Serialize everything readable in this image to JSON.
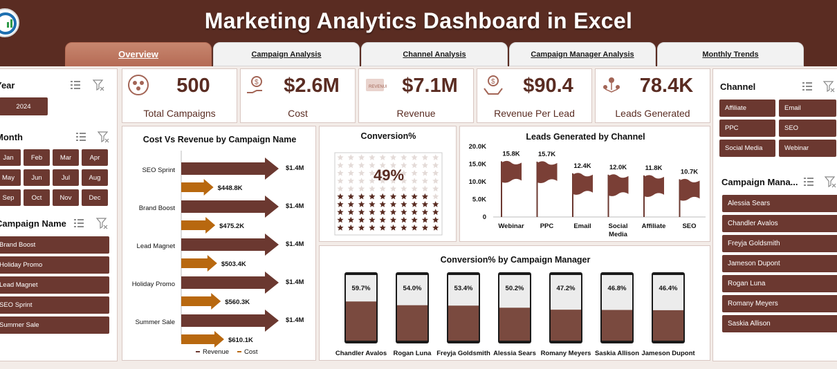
{
  "header": {
    "title": "Marketing Analytics Dashboard in Excel",
    "tabs": [
      {
        "label": "Overview",
        "active": true
      },
      {
        "label": "Campaign Analysis",
        "active": false
      },
      {
        "label": "Channel Analysis",
        "active": false
      },
      {
        "label": "Campaign Manager Analysis",
        "active": false
      },
      {
        "label": "Monthly Trends",
        "active": false
      }
    ]
  },
  "colors": {
    "brand": "#5a2c22",
    "revenue": "#6b3830",
    "cost": "#b8680f",
    "accent_tab": "#b56b55"
  },
  "left_slicers": {
    "year": {
      "title": "Year",
      "items": [
        "2024"
      ]
    },
    "month": {
      "title": "Month",
      "items": [
        "Jan",
        "Feb",
        "Mar",
        "Apr",
        "May",
        "Jun",
        "Jul",
        "Aug",
        "Sep",
        "Oct",
        "Nov",
        "Dec"
      ]
    },
    "campaign_name": {
      "title": "Campaign Name",
      "items": [
        "Brand Boost",
        "Holiday Promo",
        "Lead Magnet",
        "SEO Sprint",
        "Summer Sale"
      ]
    }
  },
  "right_slicers": {
    "channel": {
      "title": "Channel",
      "items": [
        "Affiliate",
        "Email",
        "PPC",
        "SEO",
        "Social Media",
        "Webinar"
      ]
    },
    "manager": {
      "title": "Campaign Mana...",
      "items": [
        "Alessia Sears",
        "Chandler Avalos",
        "Freyja Goldsmith",
        "Jameson Dupont",
        "Rogan Luna",
        "Romany Meyers",
        "Saskia Allison"
      ]
    }
  },
  "kpis": [
    {
      "value": "500",
      "label": "Total Campaigns",
      "icon": "campaigns-icon"
    },
    {
      "value": "$2.6M",
      "label": "Cost",
      "icon": "cost-icon"
    },
    {
      "value": "$7.1M",
      "label": "Revenue",
      "icon": "revenue-icon"
    },
    {
      "value": "$90.4",
      "label": "Revenue Per Lead",
      "icon": "revenue-per-lead-icon"
    },
    {
      "value": "78.4K",
      "label": "Leads Generated",
      "icon": "leads-icon"
    }
  ],
  "chart_data": [
    {
      "type": "bar",
      "title": "Cost Vs Revenue by Campaign Name",
      "categories": [
        "SEO Sprint",
        "Brand Boost",
        "Lead Magnet",
        "Holiday Promo",
        "Summer Sale"
      ],
      "series": [
        {
          "name": "Revenue",
          "values": [
            1.4,
            1.4,
            1.4,
            1.4,
            1.4
          ],
          "labels": [
            "$1.4M",
            "$1.4M",
            "$1.4M",
            "$1.4M",
            "$1.4M"
          ]
        },
        {
          "name": "Cost",
          "values": [
            448.8,
            475.2,
            503.4,
            560.3,
            610.1
          ],
          "labels": [
            "$448.8K",
            "$475.2K",
            "$503.4K",
            "$560.3K",
            "$610.1K"
          ]
        }
      ],
      "legend": "bottom"
    },
    {
      "type": "pie",
      "title": "Conversion%",
      "value": 0.49,
      "label": "49%",
      "grid_cols": 10,
      "grid_rows": 10
    },
    {
      "type": "bar",
      "title": "Leads Generated by Channel",
      "categories": [
        "Webinar",
        "PPC",
        "Email",
        "Social Media",
        "Affiliate",
        "SEO"
      ],
      "values": [
        15.8,
        15.7,
        12.4,
        12.0,
        11.8,
        10.7
      ],
      "labels": [
        "15.8K",
        "15.7K",
        "12.4K",
        "12.0K",
        "11.8K",
        "10.7K"
      ],
      "ylim": [
        0,
        20
      ],
      "yticks": [
        "0",
        "5.0K",
        "10.0K",
        "15.0K",
        "20.0K"
      ]
    },
    {
      "type": "bar",
      "title": "Conversion% by Campaign Manager",
      "categories": [
        "Chandler Avalos",
        "Rogan Luna",
        "Freyja Goldsmith",
        "Alessia Sears",
        "Romany Meyers",
        "Saskia Allison",
        "Jameson Dupont"
      ],
      "values": [
        59.7,
        54.0,
        53.4,
        50.2,
        47.2,
        46.8,
        46.4
      ],
      "labels": [
        "59.7%",
        "54.0%",
        "53.4%",
        "50.2%",
        "47.2%",
        "46.8%",
        "46.4%"
      ],
      "ylim": [
        0,
        100
      ]
    }
  ]
}
